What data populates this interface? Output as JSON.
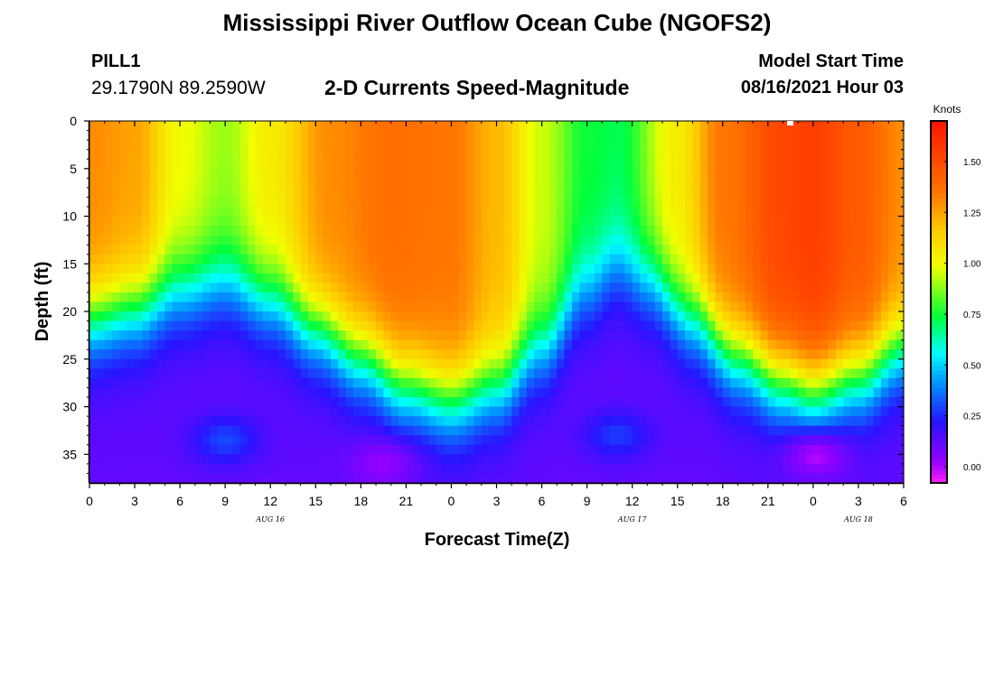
{
  "header": {
    "title": "Mississippi River Outflow Ocean Cube (NGOFS2)",
    "station_id": "PILL1",
    "station_coords": "29.1790N  89.2590W",
    "subtitle": "2-D Currents Speed-Magnitude",
    "model_start_label": "Model Start Time",
    "model_start_value": "08/16/2021 Hour 03"
  },
  "footer": {
    "title": "Mississippi River Outflow Ocean Cube (NGOFS2)"
  },
  "chart_data": {
    "type": "heatmap",
    "title": "2-D Currents Speed-Magnitude",
    "xlabel": "Forecast Time(Z)",
    "ylabel": "Depth (ft)",
    "x_range_hours": [
      0,
      54
    ],
    "y_range": [
      0,
      38
    ],
    "y_inverted": true,
    "x_ticks": [
      "0",
      "3",
      "6",
      "9",
      "12",
      "15",
      "18",
      "21",
      "0",
      "3",
      "6",
      "9",
      "12",
      "15",
      "18",
      "21",
      "0",
      "3",
      "6"
    ],
    "y_ticks": [
      0,
      5,
      10,
      15,
      20,
      25,
      30,
      35
    ],
    "date_labels": [
      {
        "label": "AUG  16",
        "at_hour": 12
      },
      {
        "label": "AUG  17",
        "at_hour": 36
      },
      {
        "label": "AUG  18",
        "at_hour": 51
      }
    ],
    "colorbar": {
      "title": "Knots",
      "ticks": [
        "0.00",
        "0.25",
        "0.50",
        "0.75",
        "1.00",
        "1.25",
        "1.50"
      ],
      "range": [
        -0.08,
        1.7
      ]
    },
    "surface_speed": [
      {
        "hour": 0,
        "value": 1.3
      },
      {
        "hour": 3,
        "value": 1.25
      },
      {
        "hour": 6,
        "value": 1.0
      },
      {
        "hour": 9,
        "value": 0.9
      },
      {
        "hour": 12,
        "value": 1.05
      },
      {
        "hour": 16,
        "value": 1.3
      },
      {
        "hour": 20,
        "value": 1.38
      },
      {
        "hour": 24,
        "value": 1.35
      },
      {
        "hour": 27,
        "value": 1.2
      },
      {
        "hour": 30,
        "value": 0.95
      },
      {
        "hour": 33,
        "value": 0.75
      },
      {
        "hour": 35,
        "value": 0.72
      },
      {
        "hour": 39,
        "value": 1.05
      },
      {
        "hour": 42,
        "value": 1.35
      },
      {
        "hour": 46,
        "value": 1.52
      },
      {
        "hour": 48,
        "value": 1.55
      },
      {
        "hour": 51,
        "value": 1.45
      },
      {
        "hour": 54,
        "value": 1.3
      }
    ],
    "half_speed_depth_ft": [
      {
        "hour": 0,
        "value": 21
      },
      {
        "hour": 3,
        "value": 20
      },
      {
        "hour": 6,
        "value": 18
      },
      {
        "hour": 9,
        "value": 17
      },
      {
        "hour": 12,
        "value": 19
      },
      {
        "hour": 15,
        "value": 22
      },
      {
        "hour": 18,
        "value": 25
      },
      {
        "hour": 21,
        "value": 28
      },
      {
        "hour": 24,
        "value": 29.5
      },
      {
        "hour": 27,
        "value": 28
      },
      {
        "hour": 30,
        "value": 24
      },
      {
        "hour": 33,
        "value": 18
      },
      {
        "hour": 35,
        "value": 15.5
      },
      {
        "hour": 37,
        "value": 17
      },
      {
        "hour": 40,
        "value": 21
      },
      {
        "hour": 43,
        "value": 25
      },
      {
        "hour": 46,
        "value": 27.5
      },
      {
        "hour": 48,
        "value": 28.5
      },
      {
        "hour": 51,
        "value": 27
      },
      {
        "hour": 54,
        "value": 24
      }
    ],
    "deep_features": [
      {
        "hour": 9,
        "depth": 33.5,
        "value": 0.3
      },
      {
        "hour": 35,
        "depth": 33,
        "value": 0.28
      },
      {
        "hour": 19.5,
        "depth": 36,
        "value": 0.03
      },
      {
        "hour": 48.2,
        "depth": 35.2,
        "value": 0.0
      }
    ]
  }
}
